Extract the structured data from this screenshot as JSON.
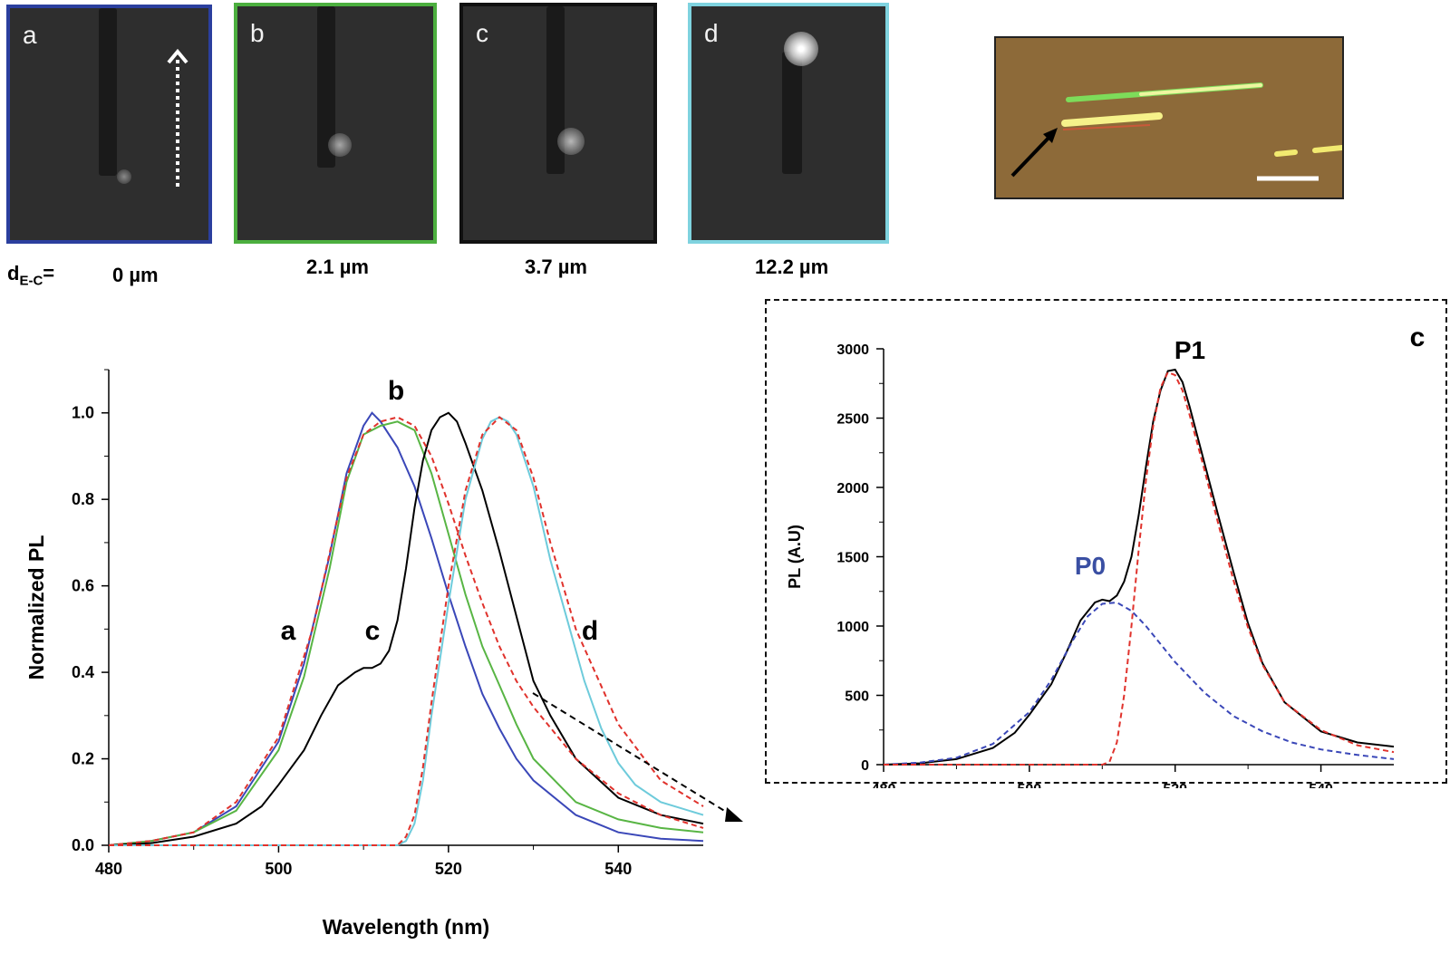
{
  "panels": [
    {
      "letter": "a",
      "distance": "0 µm",
      "border": "#2b3f9e"
    },
    {
      "letter": "b",
      "distance": "2.1 µm",
      "border": "#4caf3f"
    },
    {
      "letter": "c",
      "distance": "3.7 µm",
      "border": "#111111"
    },
    {
      "letter": "d",
      "distance": "12.2 µm",
      "border": "#7fd3df"
    }
  ],
  "distance_label": {
    "main": "d",
    "sub": "E-C",
    "suffix": "="
  },
  "chart_data": [
    {
      "type": "line",
      "xlabel": "Wavelength (nm)",
      "ylabel": "Normalized PL",
      "xlim": [
        480,
        550
      ],
      "ylim": [
        0,
        1.1
      ],
      "xticks": [
        "480",
        "500",
        "520",
        "540"
      ],
      "yticks": [
        "0.0",
        "0.2",
        "0.4",
        "0.6",
        "0.8",
        "1.0"
      ],
      "annotations": [
        "a",
        "b",
        "c",
        "d"
      ],
      "series": [
        {
          "name": "a",
          "color": "#3a47b8",
          "x": [
            480,
            485,
            490,
            495,
            500,
            503,
            506,
            508,
            510,
            511,
            512,
            514,
            516,
            518,
            520,
            522,
            524,
            526,
            528,
            530,
            535,
            540,
            545,
            550
          ],
          "y": [
            0,
            0.01,
            0.03,
            0.09,
            0.24,
            0.42,
            0.67,
            0.86,
            0.97,
            1.0,
            0.98,
            0.92,
            0.83,
            0.71,
            0.58,
            0.46,
            0.35,
            0.27,
            0.2,
            0.15,
            0.07,
            0.03,
            0.015,
            0.01
          ]
        },
        {
          "name": "b",
          "color": "#58b544",
          "x": [
            480,
            485,
            490,
            495,
            500,
            503,
            506,
            508,
            510,
            512,
            514,
            516,
            518,
            520,
            522,
            524,
            526,
            528,
            530,
            535,
            540,
            545,
            550
          ],
          "y": [
            0,
            0.01,
            0.03,
            0.08,
            0.22,
            0.39,
            0.64,
            0.84,
            0.95,
            0.97,
            0.98,
            0.96,
            0.86,
            0.72,
            0.58,
            0.46,
            0.37,
            0.28,
            0.2,
            0.1,
            0.06,
            0.04,
            0.03
          ]
        },
        {
          "name": "c",
          "color": "#000000",
          "x": [
            480,
            485,
            490,
            495,
            498,
            500,
            503,
            505,
            507,
            509,
            510,
            511,
            512,
            513,
            514,
            515,
            516,
            517,
            518,
            519,
            520,
            521,
            522,
            524,
            526,
            528,
            530,
            532,
            535,
            540,
            545,
            550
          ],
          "y": [
            0,
            0.005,
            0.02,
            0.05,
            0.09,
            0.14,
            0.22,
            0.3,
            0.37,
            0.4,
            0.41,
            0.41,
            0.42,
            0.45,
            0.52,
            0.64,
            0.78,
            0.89,
            0.96,
            0.99,
            1.0,
            0.98,
            0.93,
            0.82,
            0.68,
            0.53,
            0.38,
            0.3,
            0.2,
            0.11,
            0.07,
            0.05
          ]
        },
        {
          "name": "d",
          "color": "#6ecbdb",
          "x": [
            480,
            500,
            510,
            514,
            515,
            516,
            517,
            518,
            520,
            522,
            524,
            525,
            526,
            527,
            528,
            530,
            532,
            534,
            536,
            538,
            540,
            542,
            545,
            550
          ],
          "y": [
            0,
            0,
            0,
            0,
            0.01,
            0.05,
            0.15,
            0.3,
            0.56,
            0.8,
            0.94,
            0.98,
            0.99,
            0.98,
            0.95,
            0.83,
            0.66,
            0.52,
            0.38,
            0.27,
            0.19,
            0.14,
            0.1,
            0.07
          ]
        },
        {
          "name": "fit",
          "color": "#e0322c",
          "dashed": true,
          "x": [
            480,
            485,
            490,
            495,
            500,
            504,
            508,
            510,
            512,
            514,
            516,
            518,
            520,
            522,
            524,
            526,
            528,
            530,
            535,
            540,
            545,
            550
          ],
          "y": [
            0,
            0.01,
            0.03,
            0.1,
            0.25,
            0.5,
            0.85,
            0.95,
            0.98,
            0.99,
            0.97,
            0.9,
            0.79,
            0.67,
            0.56,
            0.46,
            0.38,
            0.32,
            0.2,
            0.12,
            0.07,
            0.04
          ]
        },
        {
          "name": "fit-d",
          "color": "#e0322c",
          "dashed": true,
          "x": [
            480,
            514,
            515,
            516,
            517,
            518,
            520,
            522,
            524,
            526,
            528,
            530,
            532,
            535,
            540,
            545,
            550
          ],
          "y": [
            0,
            0,
            0.02,
            0.07,
            0.18,
            0.33,
            0.6,
            0.82,
            0.95,
            0.99,
            0.96,
            0.85,
            0.7,
            0.5,
            0.28,
            0.15,
            0.09
          ]
        }
      ]
    },
    {
      "type": "line",
      "title": "c",
      "xlabel": "Wavelength (nm)",
      "ylabel": "PL (A.U)",
      "xlim": [
        480,
        550
      ],
      "ylim": [
        0,
        3000
      ],
      "xticks": [
        "480",
        "500",
        "520",
        "540"
      ],
      "yticks": [
        "0",
        "500",
        "1000",
        "1500",
        "2000",
        "2500",
        "3000"
      ],
      "annotations": [
        "P0",
        "P1"
      ],
      "series": [
        {
          "name": "data",
          "color": "#000000",
          "x": [
            480,
            485,
            490,
            495,
            498,
            500,
            503,
            505,
            507,
            509,
            510,
            511,
            512,
            513,
            514,
            515,
            516,
            517,
            518,
            519,
            520,
            521,
            522,
            524,
            526,
            528,
            530,
            532,
            535,
            540,
            545,
            550
          ],
          "y": [
            0,
            10,
            40,
            120,
            230,
            360,
            580,
            800,
            1040,
            1170,
            1190,
            1180,
            1220,
            1320,
            1500,
            1800,
            2150,
            2480,
            2700,
            2840,
            2850,
            2760,
            2580,
            2180,
            1780,
            1390,
            1020,
            730,
            450,
            240,
            160,
            130
          ]
        },
        {
          "name": "P0",
          "color": "#3a47b8",
          "dashed": true,
          "x": [
            480,
            485,
            490,
            495,
            500,
            503,
            506,
            508,
            510,
            512,
            514,
            516,
            518,
            520,
            524,
            528,
            532,
            536,
            540,
            545,
            550
          ],
          "y": [
            0,
            15,
            50,
            150,
            380,
            610,
            900,
            1070,
            1160,
            1170,
            1110,
            1000,
            870,
            740,
            520,
            350,
            240,
            160,
            110,
            70,
            40
          ]
        },
        {
          "name": "P1",
          "color": "#e0322c",
          "dashed": true,
          "x": [
            480,
            510,
            511,
            512,
            513,
            514,
            515,
            516,
            517,
            518,
            519,
            520,
            521,
            522,
            524,
            526,
            528,
            530,
            532,
            535,
            540,
            545,
            550
          ],
          "y": [
            0,
            0,
            20,
            160,
            500,
            1000,
            1550,
            2050,
            2450,
            2720,
            2830,
            2810,
            2700,
            2520,
            2130,
            1720,
            1330,
            990,
            720,
            450,
            250,
            140,
            90
          ]
        }
      ]
    }
  ]
}
